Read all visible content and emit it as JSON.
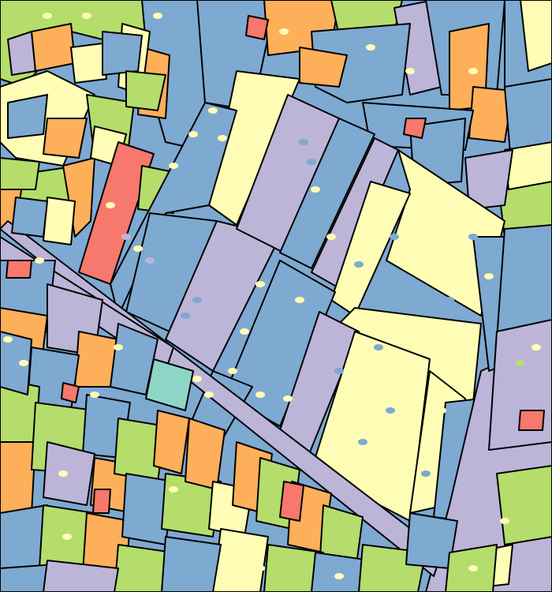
{
  "map": {
    "type": "land-cover segmentation",
    "classes": [
      {
        "id": "blue",
        "color": "#7ea9d1"
      },
      {
        "id": "yellow",
        "color": "#fffdb5"
      },
      {
        "id": "lavender",
        "color": "#bcb5d8"
      },
      {
        "id": "orange",
        "color": "#fdaf5a"
      },
      {
        "id": "green",
        "color": "#b4dd6b"
      },
      {
        "id": "red",
        "color": "#f7786c"
      },
      {
        "id": "teal",
        "color": "#8dd6c6"
      },
      {
        "id": "black",
        "color": "#000000"
      }
    ]
  }
}
